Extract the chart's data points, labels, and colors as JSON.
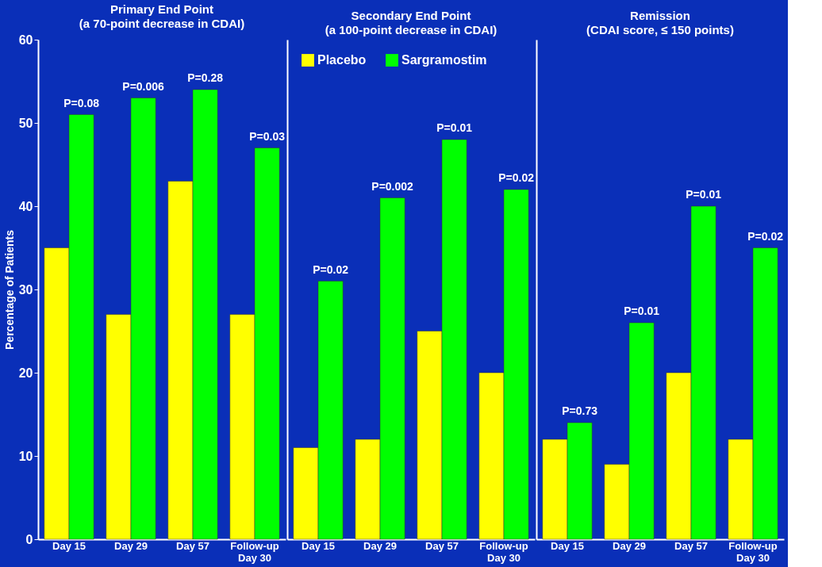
{
  "chart_data": [
    {
      "type": "bar",
      "title": "Primary End Point",
      "subtitle": "(a 70-point decrease in CDAI)",
      "ylabel": "Percentage of Patients",
      "categories": [
        "Day 15",
        "Day 29",
        "Day 57",
        "Follow-up\nDay 30"
      ],
      "series": [
        {
          "color": "#ffff00",
          "values": [
            35,
            27,
            43,
            27
          ]
        },
        {
          "color": "#00ff00",
          "values": [
            51,
            53,
            54,
            47
          ]
        }
      ],
      "ylim": [
        0,
        60
      ],
      "yticks": [
        0,
        10,
        20,
        30,
        40,
        50,
        60
      ],
      "grid": false,
      "legend": false,
      "annotations": [
        {
          "text": "P=0.08",
          "x": "Day 15",
          "y": 51
        },
        {
          "text": "P=0.006",
          "x": "Day 29",
          "y": 53
        },
        {
          "text": "P=0.28",
          "x": "Day 57",
          "y": 54
        },
        {
          "text": "P=0.03",
          "x": "Follow-up\nDay 30",
          "y": 47
        }
      ]
    },
    {
      "type": "bar",
      "title": "Secondary End Point",
      "subtitle": "(a 100-point decrease in CDAI)",
      "categories": [
        "Day 15",
        "Day 29",
        "Day 57",
        "Follow-up\nDay 30"
      ],
      "series": [
        {
          "name": "Placebo",
          "color": "#ffff00",
          "values": [
            11,
            12,
            25,
            20
          ]
        },
        {
          "name": "Sargramostim",
          "color": "#00ff00",
          "values": [
            31,
            41,
            48,
            42
          ]
        }
      ],
      "ylim": [
        0,
        60
      ],
      "tick_labels": "x",
      "grid": false,
      "legend": "top left",
      "annotations": [
        {
          "text": "P=0.02",
          "x": "Day 15",
          "y": 31
        },
        {
          "text": "P=0.002",
          "x": "Day 29",
          "y": 41
        },
        {
          "text": "P=0.01",
          "x": "Day 57",
          "y": 48
        },
        {
          "text": "P=0.02",
          "x": "Follow-up\nDay 30",
          "y": 42
        }
      ]
    },
    {
      "type": "bar",
      "title": "Remission",
      "subtitle": "(CDAI score, ≤ 150 points)",
      "categories": [
        "Day 15",
        "Day 29",
        "Day 57",
        "Follow-up\nDay 30"
      ],
      "series": [
        {
          "color": "#ffff00",
          "values": [
            12,
            9,
            20,
            12
          ]
        },
        {
          "color": "#00ff00",
          "values": [
            14,
            26,
            40,
            35
          ]
        }
      ],
      "ylim": [
        0,
        60
      ],
      "tick_labels": "x",
      "grid": false,
      "legend": false,
      "annotations": [
        {
          "text": "P=0.73",
          "x": "Day 15",
          "y": 14
        },
        {
          "text": "P=0.01",
          "x": "Day 29",
          "y": 26
        },
        {
          "text": "P=0.01",
          "x": "Day 57",
          "y": 40
        },
        {
          "text": "P=0.02",
          "x": "Follow-up\nDay 30",
          "y": 35
        }
      ]
    }
  ]
}
